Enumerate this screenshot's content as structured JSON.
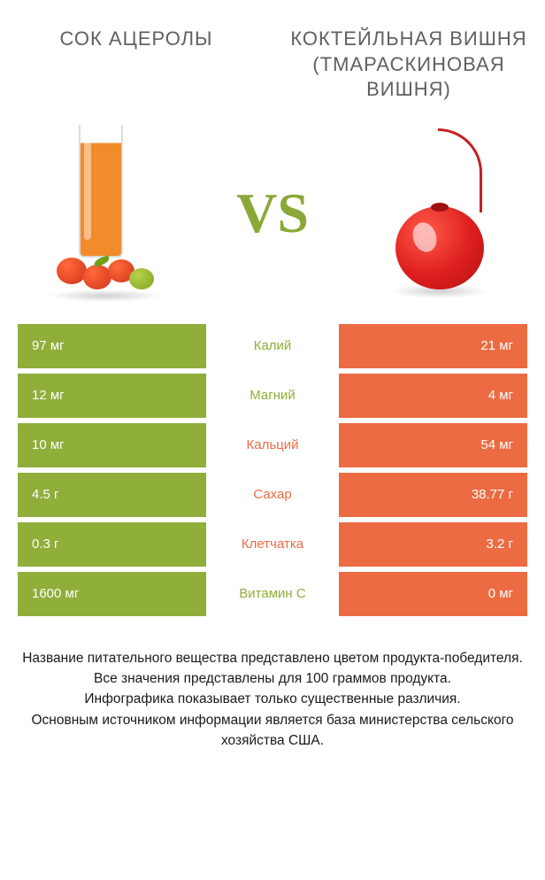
{
  "colors": {
    "left": "#8fae3a",
    "right": "#ec6b42",
    "bg": "#ffffff",
    "text": "#1a1a1a",
    "title": "#606060"
  },
  "products": {
    "left": {
      "title": "СОК АЦЕРОЛЫ"
    },
    "right": {
      "title": "КОКТЕЙЛЬНАЯ ВИШНЯ (ТМАРАСКИНОВАЯ ВИШНЯ)"
    }
  },
  "vs": "VS",
  "rows": [
    {
      "nutrient": "Калий",
      "left": "97 мг",
      "right": "21 мг",
      "winner": "left"
    },
    {
      "nutrient": "Магний",
      "left": "12 мг",
      "right": "4 мг",
      "winner": "left"
    },
    {
      "nutrient": "Кальций",
      "left": "10 мг",
      "right": "54 мг",
      "winner": "right"
    },
    {
      "nutrient": "Сахар",
      "left": "4.5 г",
      "right": "38.77 г",
      "winner": "right"
    },
    {
      "nutrient": "Клетчатка",
      "left": "0.3 г",
      "right": "3.2 г",
      "winner": "right"
    },
    {
      "nutrient": "Витамин C",
      "left": "1600 мг",
      "right": "0 мг",
      "winner": "left"
    }
  ],
  "footer": "Название питательного вещества представлено цветом продукта-победителя.\nВсе значения представлены для 100 граммов продукта.\nИнфографика показывает только существенные различия.\nОсновным источником информации является база министерства сельского хозяйства США."
}
